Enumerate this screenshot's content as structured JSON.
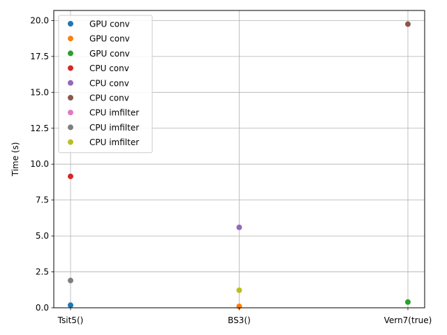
{
  "chart_data": {
    "type": "scatter",
    "title": "",
    "xlabel": "",
    "ylabel": "Time (s)",
    "categories": [
      "Tsit5()",
      "BS3()",
      "Vern7(true)"
    ],
    "ylim": [
      0,
      20.7
    ],
    "yticks": [
      "0.0",
      "2.5",
      "5.0",
      "7.5",
      "10.0",
      "12.5",
      "15.0",
      "17.5",
      "20.0"
    ],
    "grid": true,
    "legend_position": "top-left",
    "series": [
      {
        "name": "GPU conv",
        "color": "#1f77b4",
        "points": [
          {
            "x": "Tsit5()",
            "y": 0.18
          }
        ]
      },
      {
        "name": "GPU conv",
        "color": "#ff7f0e",
        "points": [
          {
            "x": "BS3()",
            "y": 0.1
          }
        ]
      },
      {
        "name": "GPU conv",
        "color": "#2ca02c",
        "points": [
          {
            "x": "Vern7(true)",
            "y": 0.4
          }
        ]
      },
      {
        "name": "CPU conv",
        "color": "#d62728",
        "points": [
          {
            "x": "Tsit5()",
            "y": 9.15
          }
        ]
      },
      {
        "name": "CPU conv",
        "color": "#9467bd",
        "points": [
          {
            "x": "BS3()",
            "y": 5.6
          }
        ]
      },
      {
        "name": "CPU conv",
        "color": "#8c564b",
        "points": [
          {
            "x": "Vern7(true)",
            "y": 19.75
          }
        ]
      },
      {
        "name": "CPU imfilter",
        "color": "#e377c2",
        "points": []
      },
      {
        "name": "CPU imfilter",
        "color": "#7f7f7f",
        "points": [
          {
            "x": "Tsit5()",
            "y": 1.9
          }
        ]
      },
      {
        "name": "CPU imfilter",
        "color": "#bcbd22",
        "points": [
          {
            "x": "BS3()",
            "y": 1.22
          }
        ]
      }
    ]
  }
}
